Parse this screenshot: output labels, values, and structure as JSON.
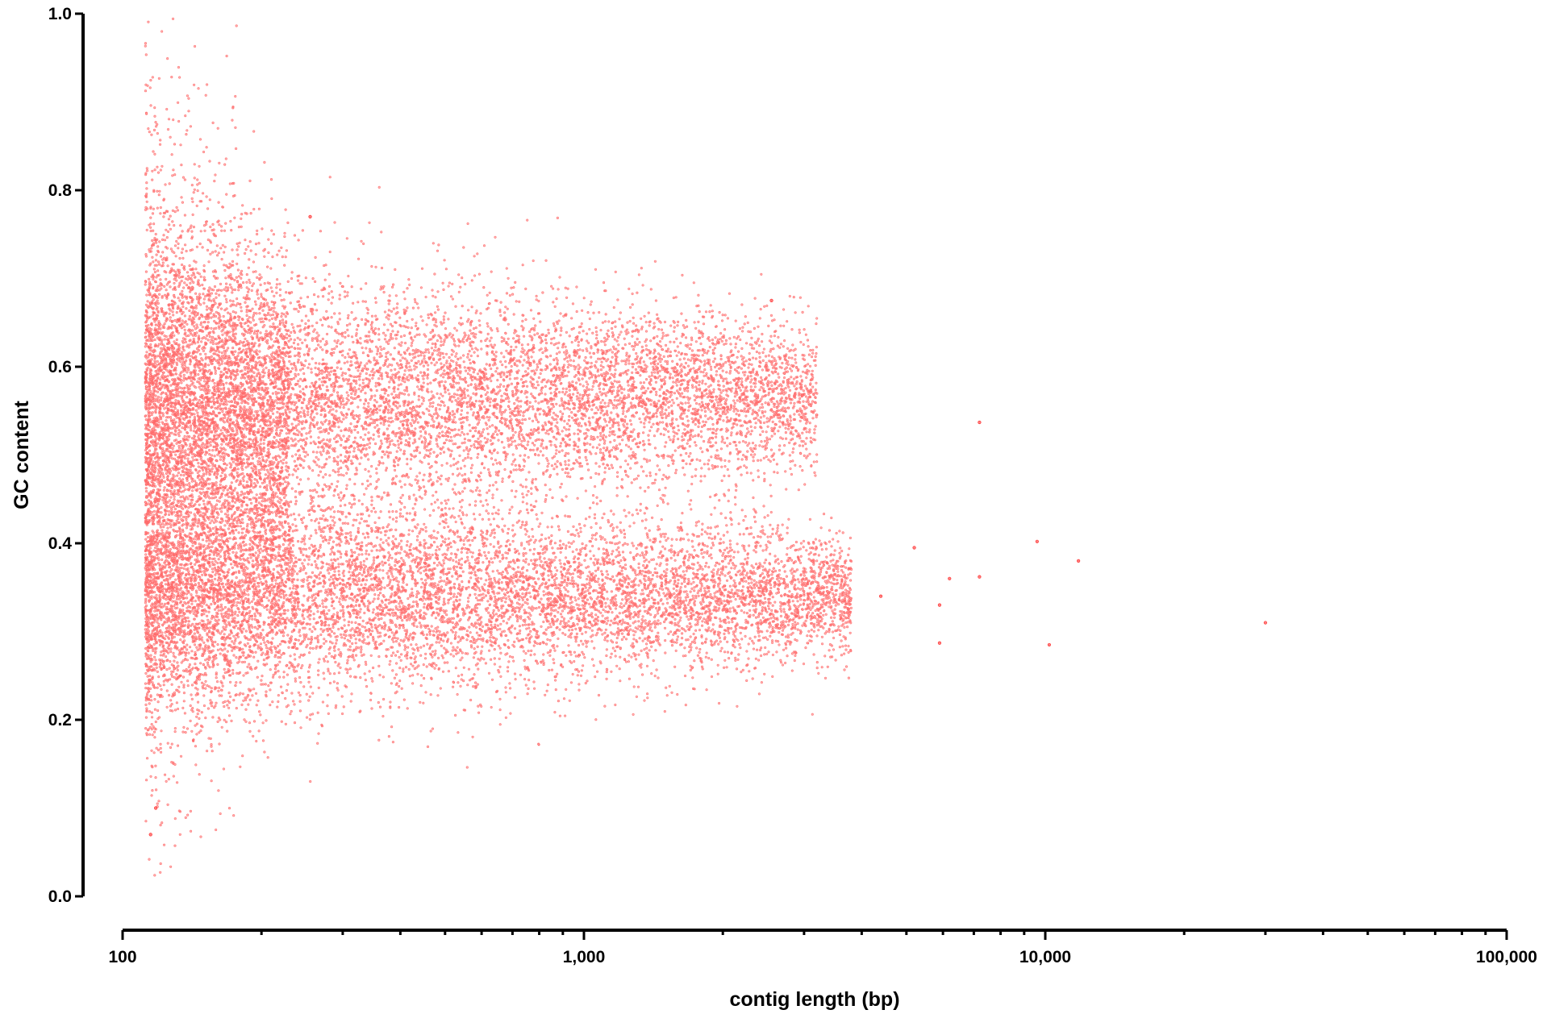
{
  "chart_data": {
    "type": "scatter",
    "xlabel": "contig length (bp)",
    "ylabel": "GC content",
    "xscale": "log",
    "xlim": [
      100,
      100000
    ],
    "ylim": [
      0.0,
      1.0
    ],
    "x_ticks": [
      100,
      1000,
      10000,
      100000
    ],
    "x_tick_labels": [
      "100",
      "1,000",
      "10,000",
      "100,000"
    ],
    "y_ticks": [
      0.0,
      0.2,
      0.4,
      0.6,
      0.8,
      1.0
    ],
    "y_tick_labels": [
      "0.0",
      "0.2",
      "0.4",
      "0.6",
      "0.8",
      "1.0"
    ],
    "grid": false,
    "legend": "none",
    "marker_color": "#ff2a2a",
    "series": [
      {
        "clusters": [
          {
            "x_range": [
              112,
              3200
            ],
            "gc_mean": 0.565,
            "gc_sd": 0.04,
            "points": 9000
          },
          {
            "x_range": [
              112,
              3800
            ],
            "gc_mean": 0.34,
            "gc_sd": 0.035,
            "points": 9000
          },
          {
            "x_range": [
              112,
              230
            ],
            "gc_mean": 0.5,
            "gc_sd": 0.1,
            "points": 4000
          }
        ],
        "outliers": [
          {
            "x": 30000,
            "y": 0.31
          },
          {
            "x": 11800,
            "y": 0.38
          },
          {
            "x": 10200,
            "y": 0.285
          },
          {
            "x": 9600,
            "y": 0.402
          },
          {
            "x": 7200,
            "y": 0.362
          },
          {
            "x": 7200,
            "y": 0.537
          },
          {
            "x": 6200,
            "y": 0.36
          },
          {
            "x": 5900,
            "y": 0.287
          },
          {
            "x": 5900,
            "y": 0.33
          },
          {
            "x": 5200,
            "y": 0.395
          },
          {
            "x": 4400,
            "y": 0.34
          },
          {
            "x": 2550,
            "y": 0.675
          },
          {
            "x": 255,
            "y": 0.77
          },
          {
            "x": 115,
            "y": 0.07
          },
          {
            "x": 118,
            "y": 0.1
          }
        ]
      }
    ]
  }
}
